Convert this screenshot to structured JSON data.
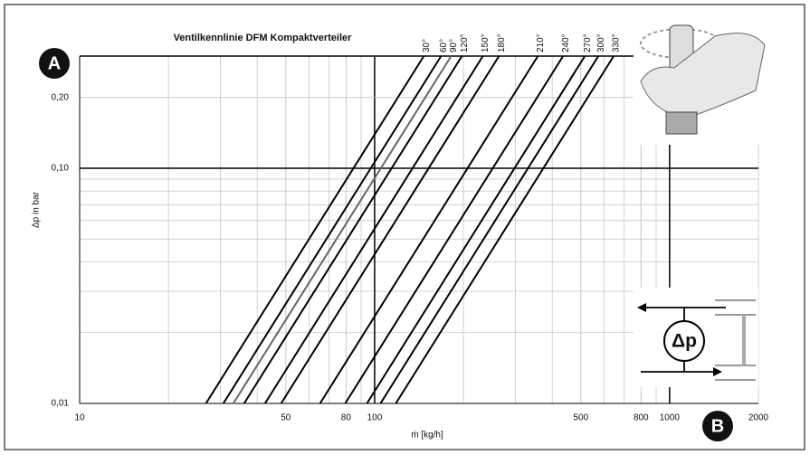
{
  "chart_data": {
    "type": "line",
    "title": "Ventilkennlinie DFM Kompaktverteiler",
    "xlabel": "ṁ [kg/h]",
    "ylabel": "Δp in bar",
    "log_x": true,
    "log_y": true,
    "grid": true,
    "annotations": [
      "A",
      "B"
    ],
    "xlim": [
      10,
      2000
    ],
    "ylim": [
      0.01,
      0.3
    ],
    "xticks": [
      10,
      50,
      80,
      100,
      500,
      800,
      1000,
      2000
    ],
    "yticks": [
      {
        "value": 0.01,
        "label": "0,01"
      },
      {
        "value": 0.1,
        "label": "0,10"
      },
      {
        "value": 0.2,
        "label": "0,20"
      }
    ],
    "series": [
      {
        "name": "30°",
        "color": "#000000",
        "x": [
          26.8,
          146.8
        ],
        "values": [
          0.01,
          0.3
        ]
      },
      {
        "name": "60°",
        "color": "#000000",
        "x": [
          30.7,
          168
        ],
        "values": [
          0.01,
          0.3
        ]
      },
      {
        "name": "90°",
        "color": "#666666",
        "x": [
          33.2,
          181.8
        ],
        "values": [
          0.01,
          0.3
        ]
      },
      {
        "name": "120°",
        "color": "#000000",
        "x": [
          36.1,
          197.7
        ],
        "values": [
          0.01,
          0.3
        ]
      },
      {
        "name": "150°",
        "color": "#000000",
        "x": [
          42.5,
          232.8
        ],
        "values": [
          0.01,
          0.3
        ]
      },
      {
        "name": "180°",
        "color": "#000000",
        "x": [
          48.2,
          264
        ],
        "values": [
          0.01,
          0.3
        ]
      },
      {
        "name": "210°",
        "color": "#000000",
        "x": [
          65.3,
          357.6
        ],
        "values": [
          0.01,
          0.3
        ]
      },
      {
        "name": "240°",
        "color": "#000000",
        "x": [
          79.5,
          435.4
        ],
        "values": [
          0.01,
          0.3
        ]
      },
      {
        "name": "270°",
        "color": "#000000",
        "x": [
          94.2,
          516
        ],
        "values": [
          0.01,
          0.3
        ]
      },
      {
        "name": "300°",
        "color": "#000000",
        "x": [
          104.7,
          573.4
        ],
        "values": [
          0.01,
          0.3
        ]
      },
      {
        "name": "330°",
        "color": "#000000",
        "x": [
          118,
          646.3
        ],
        "values": [
          0.01,
          0.3
        ]
      }
    ]
  },
  "inset": {
    "label": "Δp"
  }
}
